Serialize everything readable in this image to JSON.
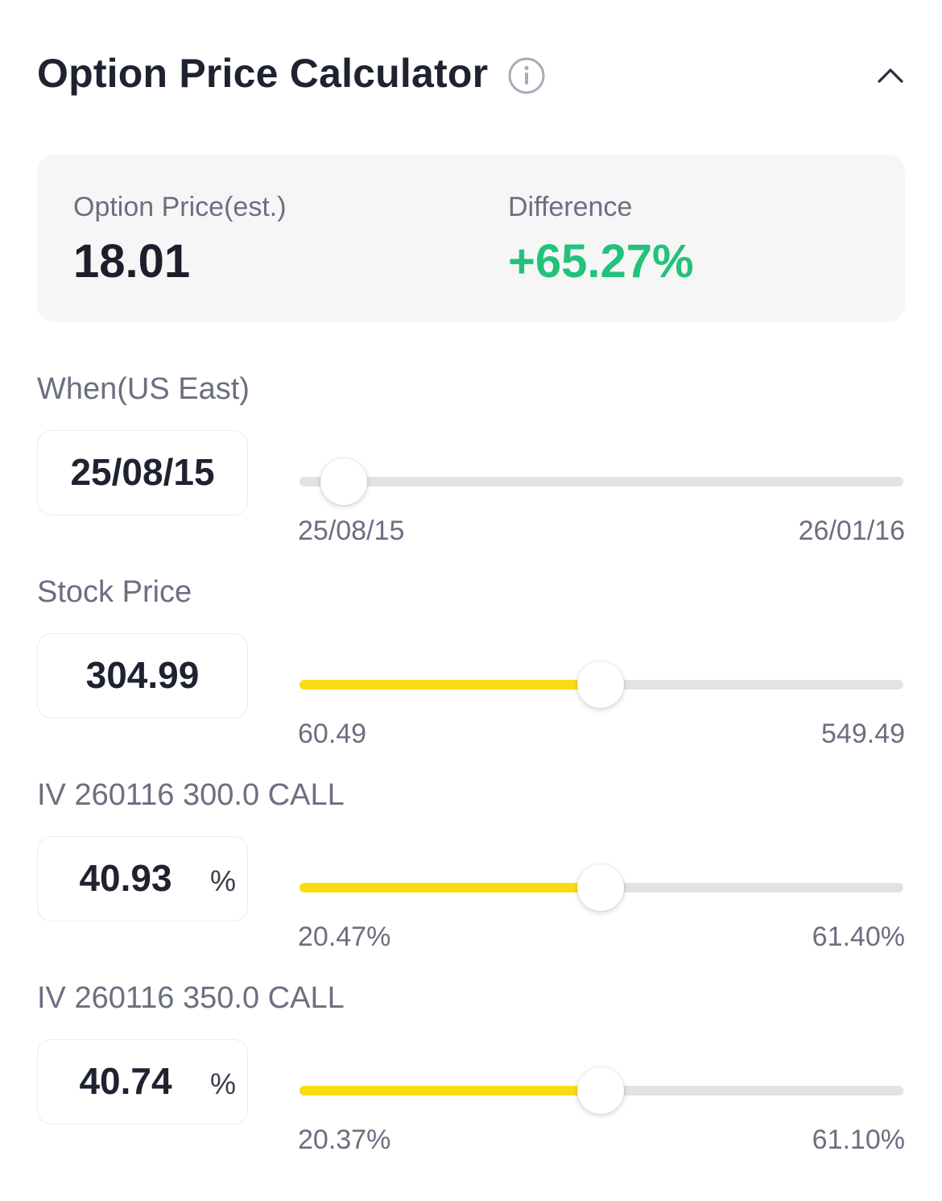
{
  "header": {
    "title": "Option Price Calculator",
    "info_icon": "info-circle-icon",
    "collapse_icon": "chevron-up-icon"
  },
  "summary": {
    "price_label": "Option Price(est.)",
    "price_value": "18.01",
    "diff_label": "Difference",
    "diff_value": "+65.27%",
    "diff_color": "#22c27a"
  },
  "when": {
    "label": "When(US East)",
    "value": "25/08/15",
    "min": "25/08/15",
    "max": "26/01/16",
    "fraction": 0.04
  },
  "stock": {
    "label": "Stock Price",
    "value": "304.99",
    "min": "60.49",
    "max": "549.49",
    "fraction": 0.5
  },
  "iv1": {
    "label": "IV 260116 300.0 CALL",
    "value": "40.93",
    "unit": "%",
    "min": "20.47%",
    "max": "61.40%",
    "fraction": 0.5
  },
  "iv2": {
    "label": "IV 260116 350.0 CALL",
    "value": "40.74",
    "unit": "%",
    "min": "20.37%",
    "max": "61.10%",
    "fraction": 0.5
  },
  "colors": {
    "accent": "#fbdc12",
    "track": "#e3e3e6",
    "positive": "#22c27a"
  }
}
